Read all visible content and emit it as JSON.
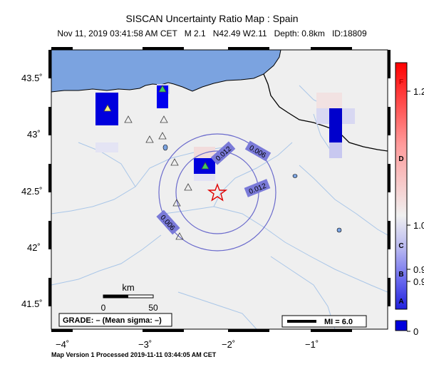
{
  "title": "SISCAN Uncertainty Ratio Map : Spain",
  "subtitle": {
    "datetime": "Nov 11, 2019 03:41:58 AM CET",
    "magnitude": "M 2.1",
    "location": "N42.49 W2.11",
    "depth": "Depth: 0.8km",
    "id": "ID:18809"
  },
  "footer": "Map Version 1 Processed 2019-11-11 03:44:05 AM CET",
  "axes": {
    "y_ticks": [
      "43.5˚",
      "43˚",
      "42.5˚",
      "42˚",
      "41.5˚"
    ],
    "x_ticks": [
      "−4˚",
      "−3˚",
      "−2˚",
      "−1˚"
    ]
  },
  "scale_bar": {
    "unit": "km",
    "labels": [
      "0",
      "50"
    ]
  },
  "grade": "GRADE: – (Mean sigma: –)",
  "mi_legend": "MI = 6.0",
  "contours": [
    "0.006",
    "0.012",
    "0.006",
    "0.012"
  ],
  "colorbar": {
    "grade_letters": [
      "F",
      "D",
      "C",
      "B",
      "A"
    ],
    "values": [
      "1.2",
      "1.0",
      "0.9",
      "0.9",
      "0"
    ],
    "colors": {
      "top": "#ff0000",
      "mid": "#f0f0f0",
      "bottom": "#0000dd"
    }
  },
  "colors": {
    "land": "#efefef",
    "sea": "#7ba3e0",
    "epicenter": "#e00000",
    "contour": "#6a6acc"
  }
}
